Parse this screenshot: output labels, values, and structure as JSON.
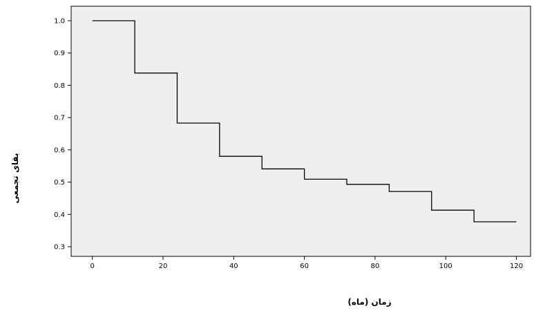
{
  "chart_data": {
    "type": "line",
    "line_style": "step",
    "title": "",
    "xlabel": "زمان (ماه)",
    "ylabel": "بقای تجمعی",
    "xlim": [
      -6,
      124
    ],
    "ylim": [
      0.27,
      1.045
    ],
    "x_ticks": [
      0,
      20,
      40,
      60,
      80,
      100,
      120
    ],
    "x_tick_labels": [
      "0",
      "20",
      "40",
      "60",
      "80",
      "100",
      "120"
    ],
    "y_ticks": [
      0.3,
      0.4,
      0.5,
      0.6,
      0.7,
      0.8,
      0.9,
      1.0
    ],
    "y_tick_labels": [
      "0.3",
      "0.4",
      "0.5",
      "0.6",
      "0.7",
      "0.8",
      "0.9",
      "1.0"
    ],
    "grid": false,
    "legend": "none",
    "colors": {
      "plot_background": "#efefef",
      "line": "#000000",
      "frame": "#000000",
      "page_background": "#ffffff"
    },
    "series": [
      {
        "x": [
          0,
          12,
          24,
          36,
          48,
          60,
          72,
          84,
          96,
          108,
          120
        ],
        "y": [
          1.0,
          0.838,
          0.683,
          0.58,
          0.541,
          0.509,
          0.493,
          0.471,
          0.413,
          0.377,
          0.377
        ]
      }
    ]
  }
}
